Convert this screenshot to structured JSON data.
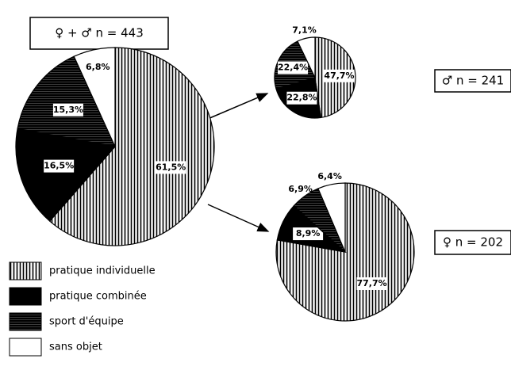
{
  "legend": {
    "labels": [
      "pratique individuelle",
      "pratique combinée",
      "sport d'équipe",
      "sans objet"
    ],
    "colors": [
      "#000000",
      "#000000",
      "#1a1a1a",
      "#ffffff"
    ],
    "hatch": [
      "vertical",
      "none",
      "horizontal",
      "none"
    ]
  },
  "chart_data": [
    {
      "type": "pie",
      "title": "♀ + ♂  n = 443",
      "values": [
        61.5,
        16.5,
        15.3,
        6.8
      ],
      "value_labels": [
        "61,5%",
        "16,5%",
        "15,3%",
        "6,8%"
      ]
    },
    {
      "type": "pie",
      "title": "♂  n = 241",
      "values": [
        47.7,
        22.8,
        22.4,
        7.1
      ],
      "value_labels": [
        "47,7%",
        "22,8%",
        "22,4%",
        "7,1%"
      ]
    },
    {
      "type": "pie",
      "title": "♀  n = 202",
      "values": [
        77.7,
        8.9,
        6.9,
        6.4
      ],
      "value_labels": [
        "77,7%",
        "8,9%",
        "6,9%",
        "6,4%"
      ]
    }
  ]
}
